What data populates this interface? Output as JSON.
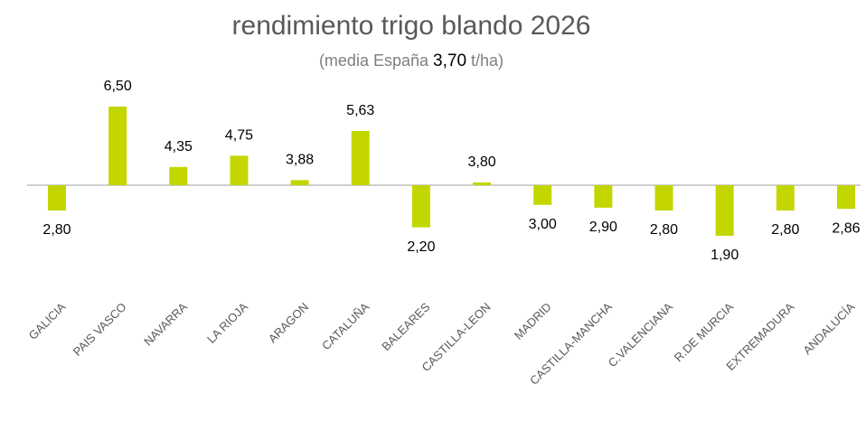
{
  "chart_data": {
    "type": "bar",
    "title": "rendimiento trigo blando 2026",
    "subtitle_prefix": "(media España",
    "baseline": {
      "value": 3.7,
      "label": "3,70"
    },
    "subtitle_suffix": "t/ha)",
    "categories": [
      "GALICIA",
      "PAIS VASCO",
      "NAVARRA",
      "LA RIOJA",
      "ARAGON",
      "CATALUÑA",
      "BALEARES",
      "CASTILLA-LEON",
      "MADRID",
      "CASTILLA-MANCHA",
      "C.VALENCIANA",
      "R.DE MURCIA",
      "EXTREMADURA",
      "ANDALUCÍA"
    ],
    "values": [
      2.8,
      6.5,
      4.35,
      4.75,
      3.88,
      5.63,
      2.2,
      3.8,
      3.0,
      2.9,
      2.8,
      1.9,
      2.8,
      2.86
    ],
    "value_labels": [
      "2,80",
      "6,50",
      "4,35",
      "4,75",
      "3,88",
      "5,63",
      "2,20",
      "3,80",
      "3,00",
      "2,90",
      "2,80",
      "1,90",
      "2,80",
      "2,86"
    ],
    "color": "#c4d600",
    "ylim": [
      1.5,
      7
    ]
  }
}
